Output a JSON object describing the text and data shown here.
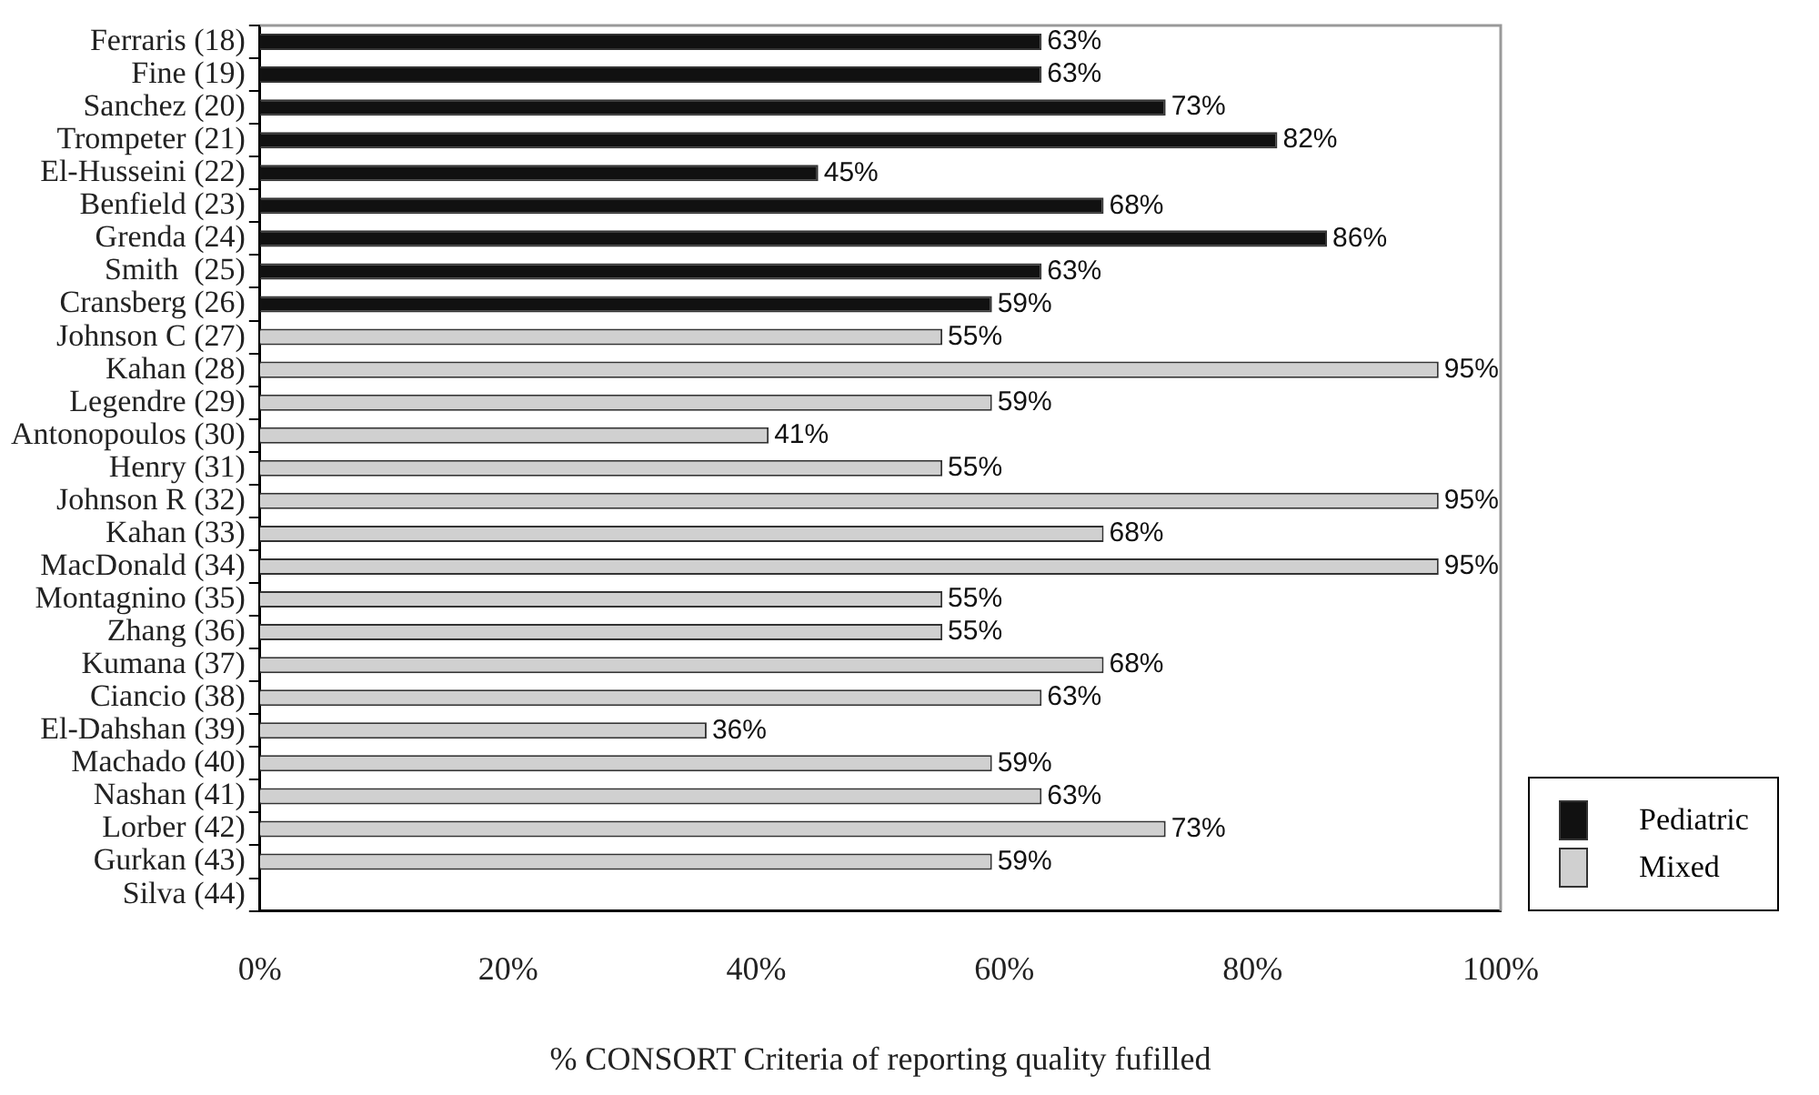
{
  "chart_data": {
    "type": "bar",
    "orientation": "horizontal",
    "xlabel": "% CONSORT Criteria of reporting quality fufilled",
    "categories": [
      "Ferraris (18)",
      "Fine (19)",
      "Sanchez (20)",
      "Trompeter (21)",
      "El-Husseini (22)",
      "Benfield (23)",
      "Grenda (24)",
      "Smith  (25)",
      "Cransberg (26)",
      "Johnson C (27)",
      "Kahan (28)",
      "Legendre (29)",
      "Antonopoulos (30)",
      "Henry (31)",
      "Johnson R (32)",
      "Kahan (33)",
      "MacDonald (34)",
      "Montagnino (35)",
      "Zhang (36)",
      "Kumana (37)",
      "Ciancio (38)",
      "El-Dahshan (39)",
      "Machado (40)",
      "Nashan (41)",
      "Lorber (42)",
      "Gurkan (43)",
      "Silva (44)"
    ],
    "series": [
      {
        "name": "Pediatric",
        "color": "#111111",
        "values": [
          63,
          63,
          73,
          82,
          45,
          68,
          86,
          63,
          59,
          null,
          null,
          null,
          null,
          null,
          null,
          null,
          null,
          null,
          null,
          null,
          null,
          null,
          null,
          null,
          null,
          null,
          null
        ],
        "value_labels": [
          "63%",
          "63%",
          "73%",
          "82%",
          "45%",
          "68%",
          "86%",
          "63%",
          "59%",
          null,
          null,
          null,
          null,
          null,
          null,
          null,
          null,
          null,
          null,
          null,
          null,
          null,
          null,
          null,
          null,
          null,
          null
        ]
      },
      {
        "name": "Mixed",
        "color": "#d0d0d0",
        "values": [
          null,
          null,
          null,
          null,
          null,
          null,
          null,
          null,
          null,
          55,
          95,
          59,
          41,
          55,
          95,
          68,
          95,
          55,
          55,
          68,
          63,
          36,
          59,
          63,
          73,
          59,
          null
        ],
        "value_labels": [
          null,
          null,
          null,
          null,
          null,
          null,
          null,
          null,
          null,
          "55%",
          "95%",
          "59%",
          "41%",
          "55%",
          "95%",
          "68%",
          "95%",
          "55%",
          "55%",
          "68%",
          "63%",
          "36%",
          "59%",
          "63%",
          "73%",
          "59%",
          null
        ]
      }
    ],
    "xlim": [
      0,
      100
    ],
    "xticks": [
      {
        "value": 0,
        "label": "0%"
      },
      {
        "value": 20,
        "label": "20%"
      },
      {
        "value": 40,
        "label": "40%"
      },
      {
        "value": 60,
        "label": "60%"
      },
      {
        "value": 80,
        "label": "80%"
      },
      {
        "value": 100,
        "label": "100%"
      }
    ],
    "grid": false,
    "legend": "bottom right"
  }
}
